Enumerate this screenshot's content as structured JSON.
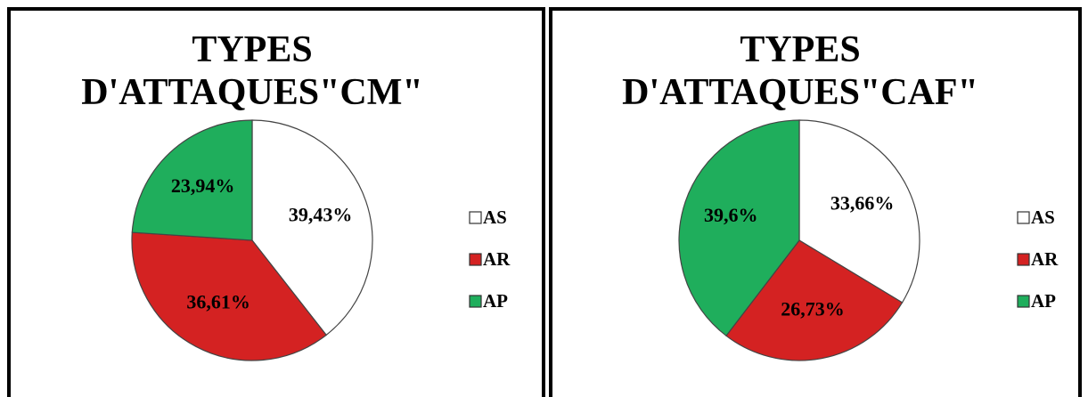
{
  "chart_data": [
    {
      "type": "pie",
      "title": "TYPES D'ATTAQUES\"CM\"",
      "categories": [
        "AS",
        "AR",
        "AP"
      ],
      "values": [
        39.43,
        36.61,
        23.94
      ],
      "value_labels": [
        "39,43%",
        "36,61%",
        "23,94%"
      ],
      "colors": [
        "#ffffff",
        "#d42222",
        "#1fae5c"
      ],
      "legend": "right"
    },
    {
      "type": "pie",
      "title": "TYPES D'ATTAQUES\"CAF\"",
      "categories": [
        "AS",
        "AR",
        "AP"
      ],
      "values": [
        33.66,
        26.73,
        39.6
      ],
      "value_labels": [
        "33,66%",
        "26,73%",
        "39,6%"
      ],
      "colors": [
        "#ffffff",
        "#d42222",
        "#1fae5c"
      ],
      "legend": "right"
    }
  ]
}
